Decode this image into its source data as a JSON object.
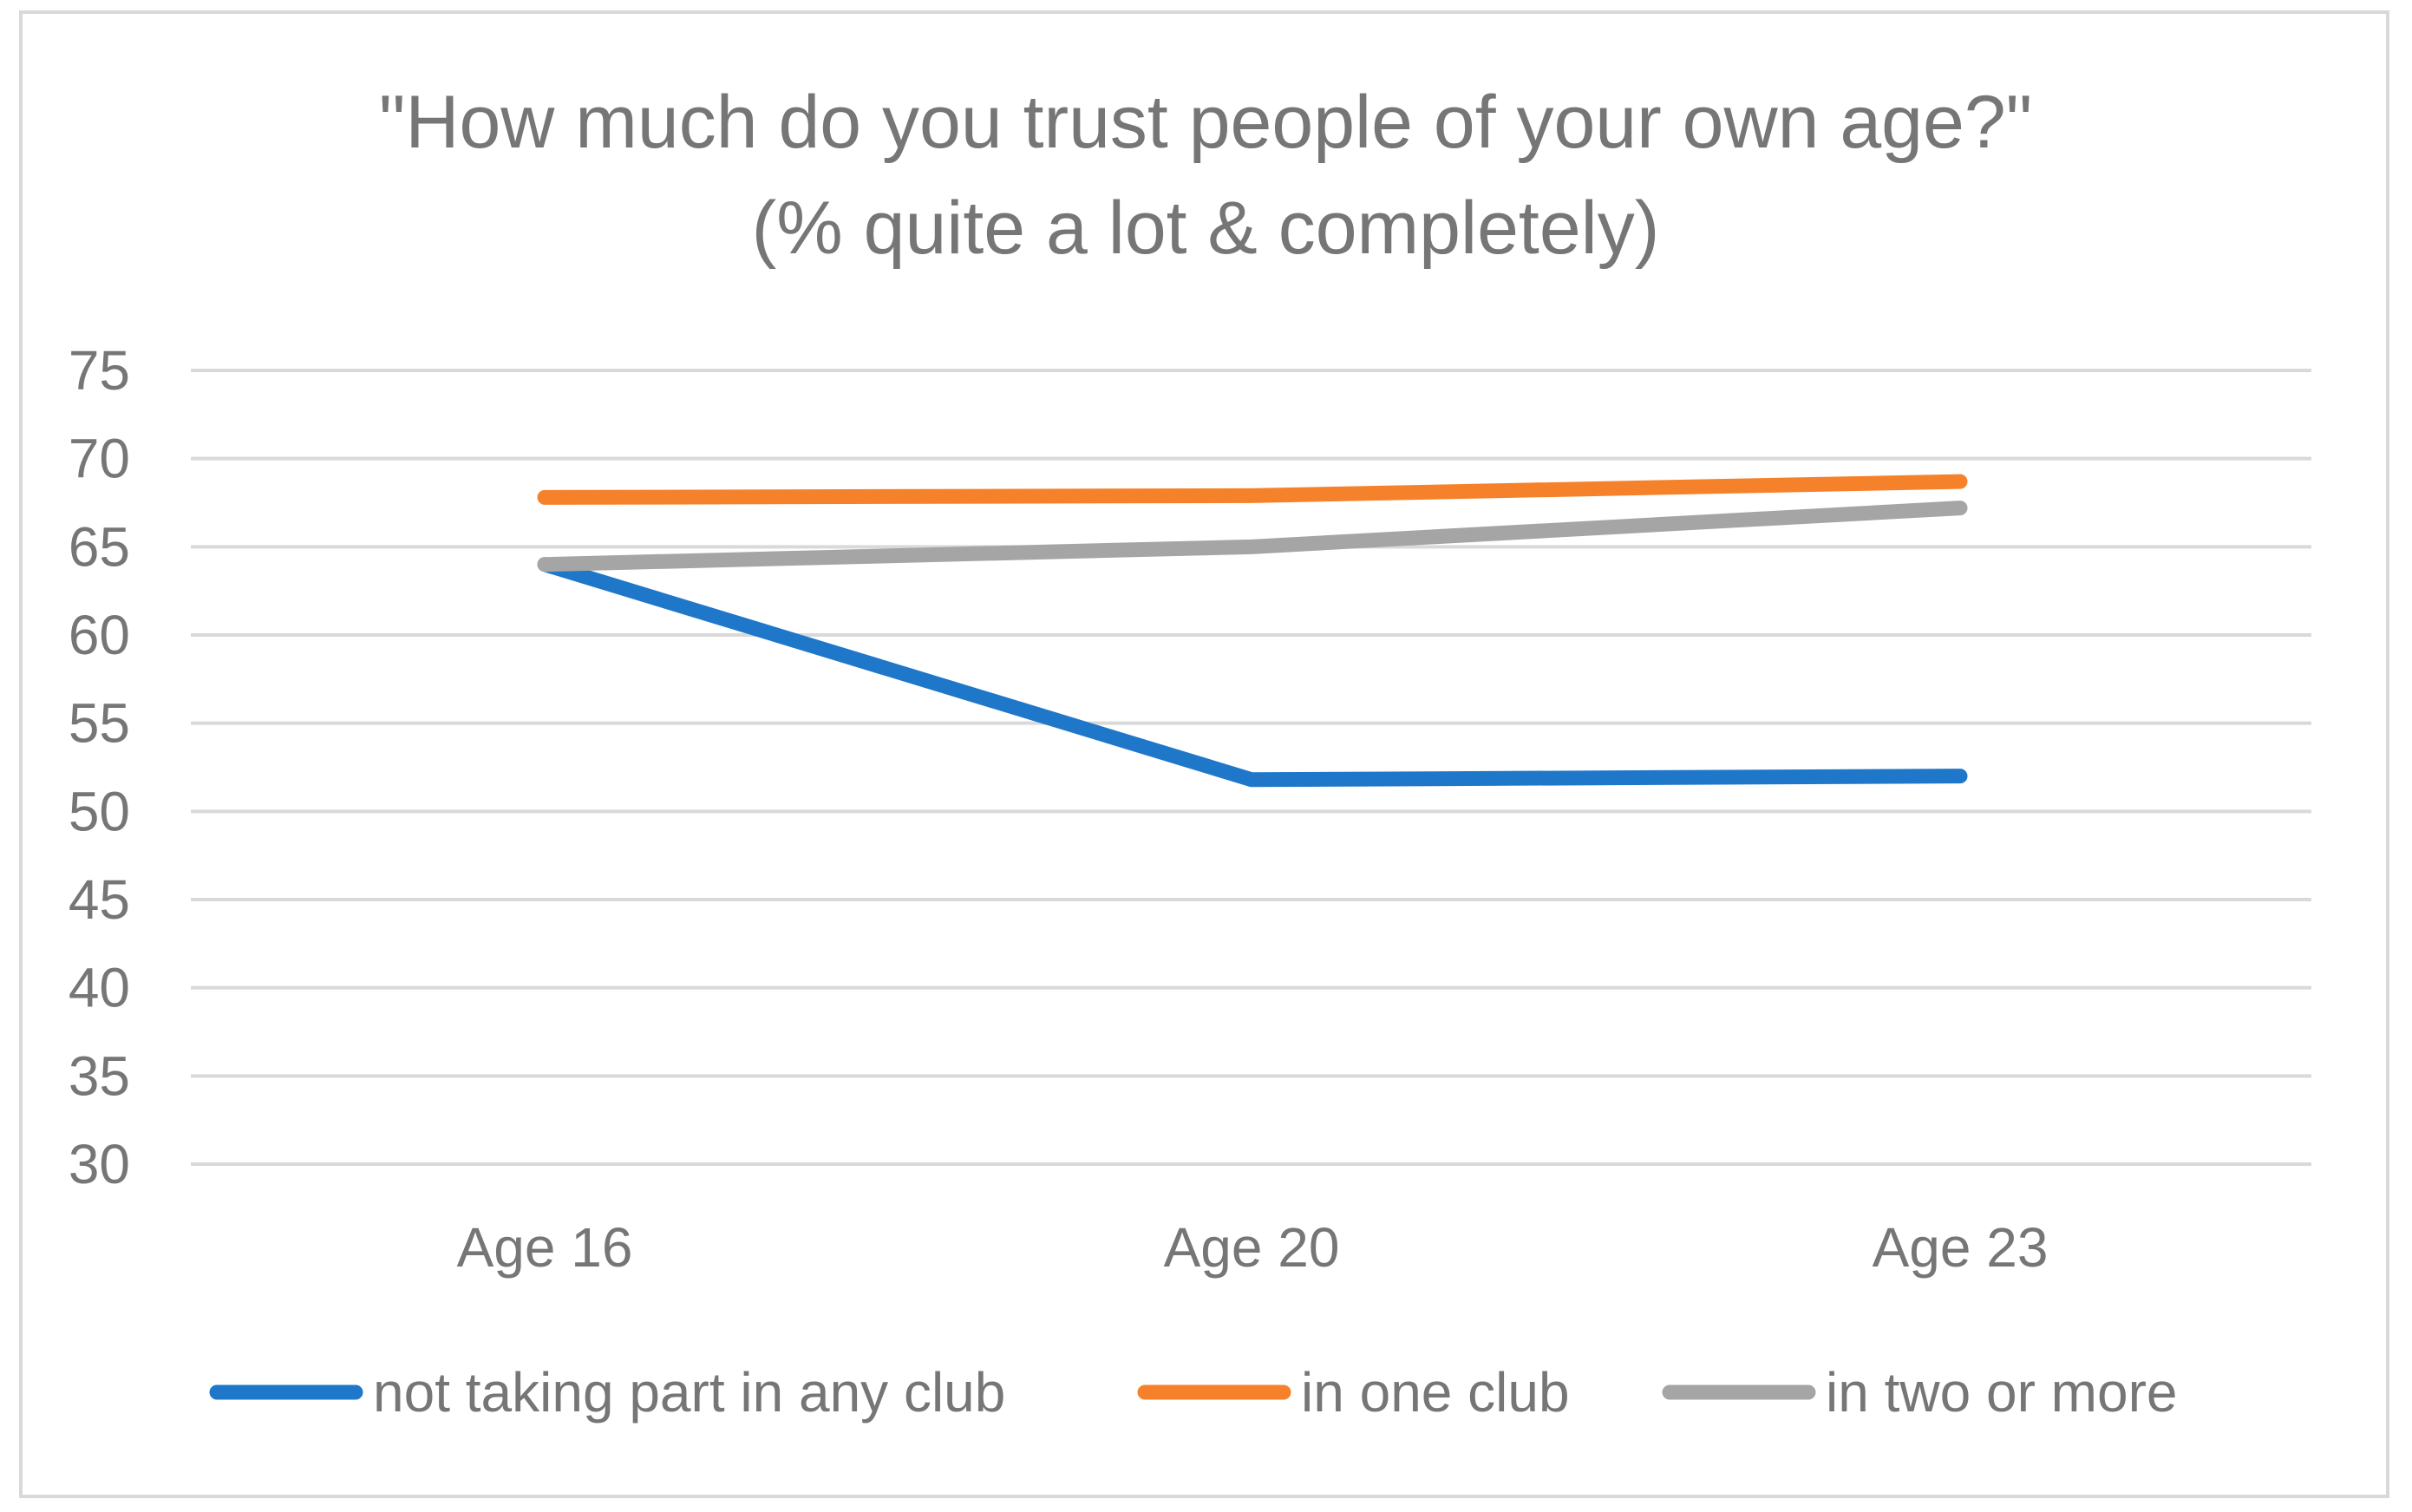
{
  "chart_data": {
    "type": "line",
    "title": "\"How much do you trust people of your own age?\"",
    "subtitle": "(% quite a lot & completely)",
    "categories": [
      "Age 16",
      "Age 20",
      "Age 23"
    ],
    "ylim": [
      30,
      75
    ],
    "yticks": [
      75,
      70,
      65,
      60,
      55,
      50,
      45,
      40,
      35,
      30
    ],
    "grid": true,
    "legend_position": "bottom",
    "series": [
      {
        "name": "not taking part in any club",
        "color": "#1f77c9",
        "values": [
          64,
          51.8,
          52
        ]
      },
      {
        "name": "in one club",
        "color": "#f5822a",
        "values": [
          67.8,
          67.9,
          68.7
        ]
      },
      {
        "name": "in two or more",
        "color": "#a5a5a5",
        "values": [
          64,
          65,
          67.2
        ]
      }
    ]
  }
}
